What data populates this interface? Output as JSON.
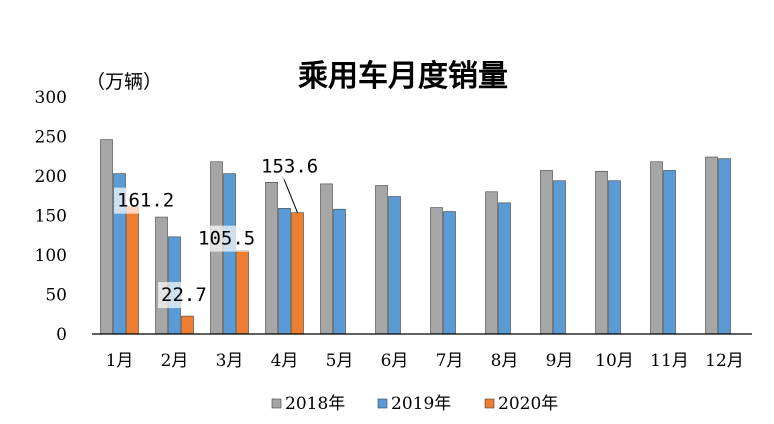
{
  "chart_data": {
    "type": "bar",
    "title": "乘用车月度销量",
    "unit_label": "（万辆）",
    "ylim": [
      0,
      300
    ],
    "yticks": [
      0,
      50,
      100,
      150,
      200,
      250,
      300
    ],
    "categories": [
      "1月",
      "2月",
      "3月",
      "4月",
      "5月",
      "6月",
      "7月",
      "8月",
      "9月",
      "10月",
      "11月",
      "12月"
    ],
    "series": [
      {
        "name": "2018年",
        "color": "#A6A6A6",
        "values": [
          246,
          148,
          218,
          192,
          190,
          188,
          160,
          180,
          207,
          206,
          218,
          224
        ]
      },
      {
        "name": "2019年",
        "color": "#5B9BD5",
        "values": [
          203,
          123,
          203,
          159,
          158,
          174,
          155,
          166,
          194,
          194,
          207,
          222
        ]
      },
      {
        "name": "2020年",
        "color": "#ED7D31",
        "values": [
          161.2,
          22.7,
          105.5,
          153.6,
          null,
          null,
          null,
          null,
          null,
          null,
          null,
          null
        ]
      }
    ],
    "data_labels": [
      {
        "series": 2,
        "index": 0,
        "text": "161.2"
      },
      {
        "series": 2,
        "index": 1,
        "text": "22.7"
      },
      {
        "series": 2,
        "index": 2,
        "text": "105.5"
      },
      {
        "series": 2,
        "index": 3,
        "text": "153.6"
      }
    ],
    "legend_position": "bottom"
  }
}
